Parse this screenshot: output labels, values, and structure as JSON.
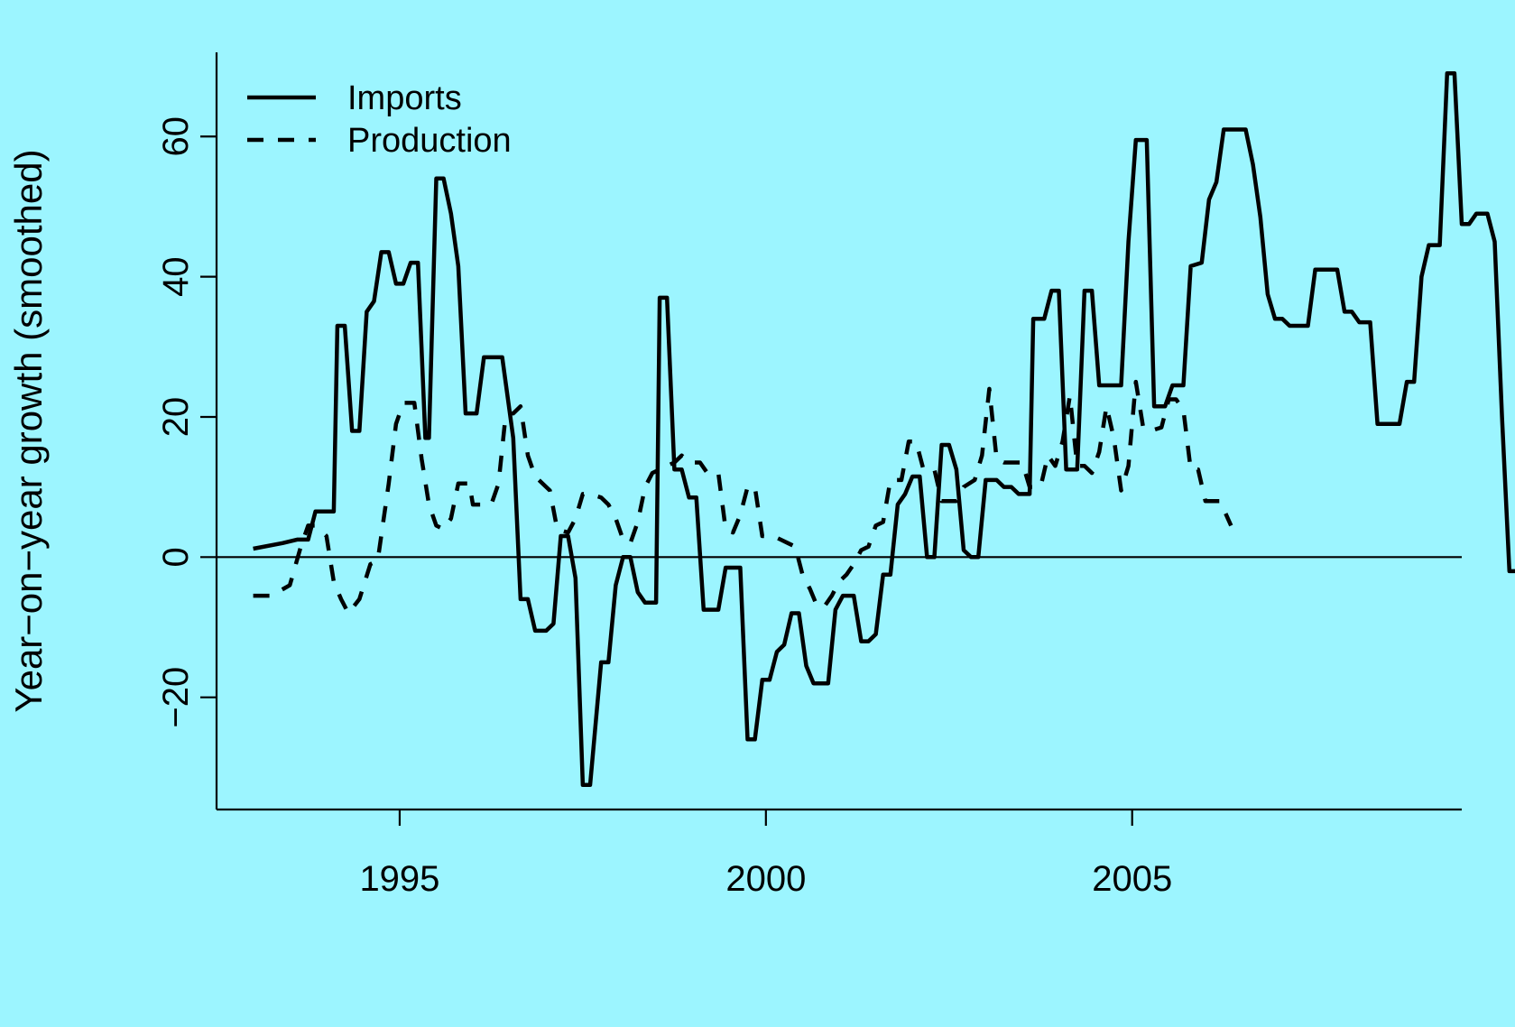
{
  "background_color": "#9cf5ff",
  "chart_data": {
    "type": "line",
    "title": "",
    "xlabel": "",
    "ylabel": "Year−on−year growth (smoothed)",
    "xlim": [
      1992.5,
      2009.5
    ],
    "ylim": [
      -36,
      72
    ],
    "x_ticks": [
      1995,
      2000,
      2005
    ],
    "x_tick_labels": [
      "1995",
      "2000",
      "2005"
    ],
    "y_ticks": [
      -20,
      0,
      20,
      40,
      60
    ],
    "y_tick_labels": [
      "−20",
      "0",
      "20",
      "40",
      "60"
    ],
    "reference_line_y": 0,
    "legend_position": "top-left",
    "series": [
      {
        "name": "Imports",
        "style": "solid",
        "color": "#000000",
        "points": [
          [
            1993.0,
            1.2
          ],
          [
            1993.4,
            2.0
          ],
          [
            1993.6,
            2.5
          ],
          [
            1993.75,
            2.5
          ],
          [
            1993.85,
            6.5
          ],
          [
            1994.1,
            6.5
          ],
          [
            1994.15,
            33.0
          ],
          [
            1994.25,
            33.0
          ],
          [
            1994.35,
            18.0
          ],
          [
            1994.45,
            18.0
          ],
          [
            1994.55,
            35.0
          ],
          [
            1994.65,
            36.5
          ],
          [
            1994.75,
            43.5
          ],
          [
            1994.85,
            43.5
          ],
          [
            1994.95,
            39.0
          ],
          [
            1995.05,
            39.0
          ],
          [
            1995.15,
            42.0
          ],
          [
            1995.25,
            42.0
          ],
          [
            1995.35,
            17.0
          ],
          [
            1995.4,
            17.0
          ],
          [
            1995.5,
            54.0
          ],
          [
            1995.6,
            54.0
          ],
          [
            1995.7,
            49.0
          ],
          [
            1995.8,
            41.5
          ],
          [
            1995.9,
            20.5
          ],
          [
            1996.05,
            20.5
          ],
          [
            1996.15,
            28.5
          ],
          [
            1996.4,
            28.5
          ],
          [
            1996.55,
            17.0
          ],
          [
            1996.65,
            -6.0
          ],
          [
            1996.75,
            -6.0
          ],
          [
            1996.85,
            -10.5
          ],
          [
            1997.0,
            -10.5
          ],
          [
            1997.1,
            -9.5
          ],
          [
            1997.2,
            3.0
          ],
          [
            1997.3,
            3.0
          ],
          [
            1997.4,
            -3.0
          ],
          [
            1997.5,
            -32.5
          ],
          [
            1997.6,
            -32.5
          ],
          [
            1997.75,
            -15.0
          ],
          [
            1997.85,
            -15.0
          ],
          [
            1997.95,
            -4.0
          ],
          [
            1998.05,
            0.0
          ],
          [
            1998.15,
            0.0
          ],
          [
            1998.25,
            -5.0
          ],
          [
            1998.35,
            -6.5
          ],
          [
            1998.5,
            -6.5
          ],
          [
            1998.55,
            37.0
          ],
          [
            1998.65,
            37.0
          ],
          [
            1998.75,
            12.5
          ],
          [
            1998.85,
            12.5
          ],
          [
            1998.95,
            8.5
          ],
          [
            1999.05,
            8.5
          ],
          [
            1999.15,
            -7.5
          ],
          [
            1999.35,
            -7.5
          ],
          [
            1999.45,
            -1.5
          ],
          [
            1999.65,
            -1.5
          ],
          [
            1999.75,
            -26.0
          ],
          [
            1999.85,
            -26.0
          ],
          [
            1999.95,
            -17.5
          ],
          [
            2000.05,
            -17.5
          ],
          [
            2000.15,
            -13.5
          ],
          [
            2000.25,
            -12.5
          ],
          [
            2000.35,
            -8.0
          ],
          [
            2000.45,
            -8.0
          ],
          [
            2000.55,
            -15.5
          ],
          [
            2000.65,
            -18.0
          ],
          [
            2000.85,
            -18.0
          ],
          [
            2000.95,
            -7.5
          ],
          [
            2001.05,
            -5.5
          ],
          [
            2001.2,
            -5.5
          ],
          [
            2001.3,
            -12.0
          ],
          [
            2001.4,
            -12.0
          ],
          [
            2001.5,
            -11.0
          ],
          [
            2001.6,
            -2.5
          ],
          [
            2001.7,
            -2.5
          ],
          [
            2001.8,
            7.5
          ],
          [
            2001.9,
            9.0
          ],
          [
            2002.0,
            11.5
          ],
          [
            2002.1,
            11.5
          ],
          [
            2002.2,
            0.0
          ],
          [
            2002.3,
            0.0
          ],
          [
            2002.4,
            16.0
          ],
          [
            2002.5,
            16.0
          ],
          [
            2002.6,
            12.5
          ],
          [
            2002.7,
            1.0
          ],
          [
            2002.8,
            0.0
          ],
          [
            2002.9,
            0.0
          ],
          [
            2003.0,
            11.0
          ],
          [
            2003.15,
            11.0
          ],
          [
            2003.25,
            10.0
          ],
          [
            2003.35,
            10.0
          ],
          [
            2003.45,
            9.0
          ],
          [
            2003.6,
            9.0
          ],
          [
            2003.65,
            34.0
          ],
          [
            2003.8,
            34.0
          ],
          [
            2003.9,
            38.0
          ],
          [
            2004.0,
            38.0
          ],
          [
            2004.1,
            12.5
          ],
          [
            2004.25,
            12.5
          ],
          [
            2004.35,
            38.0
          ],
          [
            2004.45,
            38.0
          ],
          [
            2004.55,
            24.5
          ],
          [
            2004.85,
            24.5
          ],
          [
            2004.95,
            45.0
          ],
          [
            2005.05,
            59.5
          ],
          [
            2005.2,
            59.5
          ],
          [
            2005.3,
            21.5
          ],
          [
            2005.45,
            21.5
          ],
          [
            2005.55,
            24.5
          ],
          [
            2005.7,
            24.5
          ],
          [
            2005.8,
            41.5
          ],
          [
            2005.95,
            42.0
          ],
          [
            2006.05,
            51.0
          ],
          [
            2006.15,
            53.5
          ],
          [
            2006.25,
            61.0
          ],
          [
            2006.55,
            61.0
          ],
          [
            2006.65,
            56.0
          ],
          [
            2006.75,
            48.5
          ],
          [
            2006.85,
            37.5
          ],
          [
            2006.95,
            34.0
          ],
          [
            2007.05,
            34.0
          ],
          [
            2007.15,
            33.0
          ],
          [
            2007.4,
            33.0
          ],
          [
            2007.5,
            41.0
          ],
          [
            2007.8,
            41.0
          ],
          [
            2007.9,
            35.0
          ],
          [
            2008.0,
            35.0
          ],
          [
            2008.1,
            33.5
          ],
          [
            2008.25,
            33.5
          ],
          [
            2008.35,
            19.0
          ],
          [
            2008.65,
            19.0
          ],
          [
            2008.75,
            25.0
          ],
          [
            2008.85,
            25.0
          ],
          [
            2008.95,
            40.0
          ],
          [
            2009.05,
            44.5
          ],
          [
            2009.2,
            44.5
          ],
          [
            2009.3,
            69.0
          ],
          [
            2009.4,
            69.0
          ],
          [
            2009.5,
            47.5
          ],
          [
            2009.6,
            47.5
          ],
          [
            2009.7,
            49.0
          ],
          [
            2009.85,
            49.0
          ],
          [
            2009.95,
            45.0
          ],
          [
            2010.05,
            20.0
          ],
          [
            2010.15,
            -2.0
          ],
          [
            2010.3,
            -2.0
          ]
        ]
      },
      {
        "name": "Production",
        "style": "dashed",
        "color": "#000000",
        "points": [
          [
            1993.0,
            -5.5
          ],
          [
            1993.25,
            -5.5
          ],
          [
            1993.5,
            -4.0
          ],
          [
            1993.65,
            1.5
          ],
          [
            1993.75,
            4.5
          ],
          [
            1993.85,
            4.5
          ],
          [
            1994.0,
            3.0
          ],
          [
            1994.1,
            -3.5
          ],
          [
            1994.2,
            -6.0
          ],
          [
            1994.3,
            -8.0
          ],
          [
            1994.45,
            -6.0
          ],
          [
            1994.6,
            -1.0
          ],
          [
            1994.7,
            -0.5
          ],
          [
            1994.85,
            10.5
          ],
          [
            1994.95,
            19.0
          ],
          [
            1995.05,
            22.0
          ],
          [
            1995.2,
            22.0
          ],
          [
            1995.3,
            14.0
          ],
          [
            1995.4,
            7.5
          ],
          [
            1995.5,
            4.5
          ],
          [
            1995.6,
            4.0
          ],
          [
            1995.7,
            5.5
          ],
          [
            1995.8,
            10.5
          ],
          [
            1995.95,
            10.5
          ],
          [
            1996.0,
            7.5
          ],
          [
            1996.25,
            7.5
          ],
          [
            1996.35,
            10.5
          ],
          [
            1996.45,
            20.5
          ],
          [
            1996.55,
            20.5
          ],
          [
            1996.65,
            21.5
          ],
          [
            1996.75,
            14.5
          ],
          [
            1996.85,
            11.5
          ],
          [
            1997.05,
            9.5
          ],
          [
            1997.15,
            4.0
          ],
          [
            1997.3,
            3.5
          ],
          [
            1997.4,
            5.5
          ],
          [
            1997.5,
            9.0
          ],
          [
            1997.6,
            9.0
          ],
          [
            1997.75,
            8.5
          ],
          [
            1997.85,
            7.5
          ],
          [
            1997.95,
            5.5
          ],
          [
            1998.05,
            2.5
          ],
          [
            1998.15,
            2.0
          ],
          [
            1998.25,
            5.0
          ],
          [
            1998.35,
            10.0
          ],
          [
            1998.45,
            12.0
          ],
          [
            1998.55,
            12.5
          ],
          [
            1998.65,
            13.0
          ],
          [
            1998.75,
            13.5
          ],
          [
            1998.85,
            14.5
          ],
          [
            1998.95,
            13.5
          ],
          [
            1999.1,
            13.5
          ],
          [
            1999.2,
            12.0
          ],
          [
            1999.35,
            12.0
          ],
          [
            1999.45,
            4.0
          ],
          [
            1999.55,
            3.5
          ],
          [
            1999.65,
            6.0
          ],
          [
            1999.75,
            10.0
          ],
          [
            1999.85,
            10.0
          ],
          [
            1999.95,
            3.0
          ],
          [
            2000.1,
            3.0
          ],
          [
            2000.2,
            2.5
          ],
          [
            2000.3,
            2.0
          ],
          [
            2000.4,
            1.5
          ],
          [
            2000.5,
            -2.5
          ],
          [
            2000.6,
            -4.5
          ],
          [
            2000.7,
            -7.0
          ],
          [
            2000.8,
            -7.0
          ],
          [
            2000.9,
            -5.5
          ],
          [
            2001.0,
            -3.5
          ],
          [
            2001.1,
            -2.5
          ],
          [
            2001.2,
            -1.0
          ],
          [
            2001.3,
            1.0
          ],
          [
            2001.4,
            1.5
          ],
          [
            2001.5,
            4.5
          ],
          [
            2001.6,
            5.0
          ],
          [
            2001.7,
            11.0
          ],
          [
            2001.85,
            11.0
          ],
          [
            2001.95,
            16.5
          ],
          [
            2002.05,
            16.5
          ],
          [
            2002.15,
            12.5
          ],
          [
            2002.3,
            12.5
          ],
          [
            2002.4,
            8.0
          ],
          [
            2002.6,
            8.0
          ],
          [
            2002.7,
            10.0
          ],
          [
            2002.85,
            11.0
          ],
          [
            2002.95,
            14.5
          ],
          [
            2003.05,
            24.0
          ],
          [
            2003.15,
            14.0
          ],
          [
            2003.25,
            13.5
          ],
          [
            2003.5,
            13.5
          ],
          [
            2003.6,
            10.0
          ],
          [
            2003.75,
            10.0
          ],
          [
            2003.85,
            14.5
          ],
          [
            2003.95,
            13.0
          ],
          [
            2004.05,
            16.5
          ],
          [
            2004.15,
            23.0
          ],
          [
            2004.25,
            13.0
          ],
          [
            2004.35,
            13.0
          ],
          [
            2004.45,
            12.0
          ],
          [
            2004.55,
            15.0
          ],
          [
            2004.65,
            21.5
          ],
          [
            2004.75,
            17.0
          ],
          [
            2004.85,
            9.5
          ],
          [
            2004.95,
            13.0
          ],
          [
            2005.05,
            25.0
          ],
          [
            2005.15,
            18.5
          ],
          [
            2005.25,
            18.0
          ],
          [
            2005.4,
            18.5
          ],
          [
            2005.5,
            22.5
          ],
          [
            2005.6,
            22.5
          ],
          [
            2005.7,
            21.0
          ],
          [
            2005.8,
            12.5
          ],
          [
            2005.9,
            12.5
          ],
          [
            2006.0,
            8.0
          ],
          [
            2006.2,
            8.0
          ],
          [
            2006.35,
            4.5
          ]
        ]
      }
    ]
  }
}
